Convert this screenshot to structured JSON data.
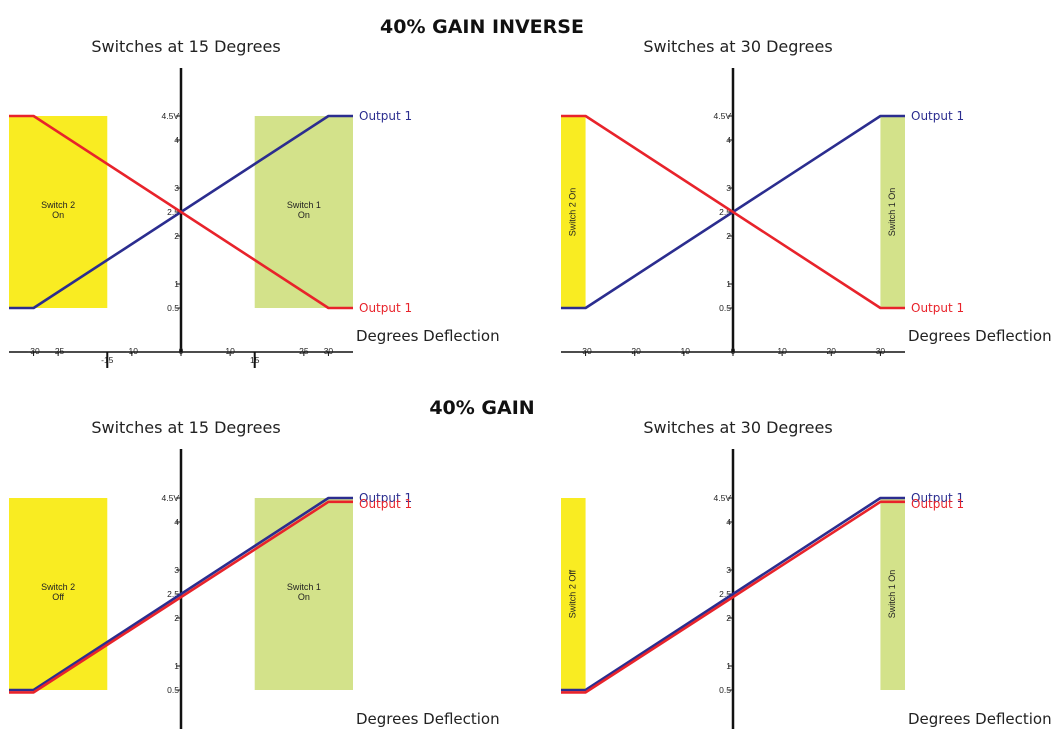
{
  "sections": [
    {
      "title": "40% GAIN INVERSE"
    },
    {
      "title": "40% GAIN"
    }
  ],
  "chart_data": [
    {
      "type": "line",
      "title": "Switches at 15 Degrees",
      "xlabel": "Degrees Deflection",
      "ylabel": "",
      "xlim": [
        -35,
        35
      ],
      "ylim": [
        0,
        5
      ],
      "x_ticks": [
        -30,
        -25,
        -15,
        -10,
        0,
        10,
        15,
        25,
        30
      ],
      "x_tick_labels": [
        "-30",
        "-25",
        "-15",
        "-10",
        "0",
        "10",
        "15",
        "25",
        "30"
      ],
      "y_ticks": [
        0.5,
        1,
        2,
        2.5,
        3,
        4,
        4.5
      ],
      "y_tick_labels": [
        "0.5",
        "1",
        "2",
        "2.5",
        "3",
        "4",
        "4.5V"
      ],
      "switches": [
        {
          "x0": -35,
          "x1": -15,
          "color": "#f9ec22",
          "label_lines": [
            "Switch 2",
            "On"
          ],
          "orientation": "horizontal"
        },
        {
          "x0": 15,
          "x1": 35,
          "color": "#d3e28a",
          "label_lines": [
            "Switch 1",
            "On"
          ],
          "orientation": "horizontal"
        }
      ],
      "series": [
        {
          "name": "Output 1",
          "color": "#2b2d8f",
          "x": [
            -35,
            -30,
            30,
            35
          ],
          "y": [
            0.5,
            0.5,
            4.5,
            4.5
          ]
        },
        {
          "name": "Output 1",
          "color": "#e8232b",
          "x": [
            -35,
            -30,
            30,
            35
          ],
          "y": [
            4.5,
            4.5,
            0.5,
            0.5
          ]
        }
      ]
    },
    {
      "type": "line",
      "title": "Switches at 30 Degrees",
      "xlabel": "Degrees Deflection",
      "ylabel": "",
      "xlim": [
        -35,
        35
      ],
      "ylim": [
        0,
        5
      ],
      "x_ticks": [
        -30,
        -20,
        -10,
        0,
        10,
        20,
        30
      ],
      "x_tick_labels": [
        "-30",
        "-20",
        "-10",
        "0",
        "10",
        "20",
        "30"
      ],
      "y_ticks": [
        0.5,
        1,
        2,
        2.5,
        3,
        4,
        4.5
      ],
      "y_tick_labels": [
        "0.5",
        "1",
        "2",
        "2.5",
        "3",
        "4",
        "4.5V"
      ],
      "switches": [
        {
          "x0": -35,
          "x1": -30,
          "color": "#f9ec22",
          "label_lines": [
            "Switch 2 On"
          ],
          "orientation": "vertical"
        },
        {
          "x0": 30,
          "x1": 35,
          "color": "#d3e28a",
          "label_lines": [
            "Switch 1 On"
          ],
          "orientation": "vertical"
        }
      ],
      "series": [
        {
          "name": "Output 1",
          "color": "#2b2d8f",
          "x": [
            -35,
            -30,
            30,
            35
          ],
          "y": [
            0.5,
            0.5,
            4.5,
            4.5
          ]
        },
        {
          "name": "Output 1",
          "color": "#e8232b",
          "x": [
            -35,
            -30,
            30,
            35
          ],
          "y": [
            4.5,
            4.5,
            0.5,
            0.5
          ]
        }
      ]
    },
    {
      "type": "line",
      "title": "Switches at 15 Degrees",
      "xlabel": "Degrees Deflection",
      "ylabel": "",
      "xlim": [
        -35,
        35
      ],
      "ylim": [
        0,
        5
      ],
      "x_ticks": [],
      "x_tick_labels": [],
      "y_ticks": [
        0.5,
        1,
        2,
        2.5,
        3,
        4,
        4.5
      ],
      "y_tick_labels": [
        "0.5",
        "1",
        "2",
        "2.5",
        "3",
        "4",
        "4.5V"
      ],
      "switches": [
        {
          "x0": -35,
          "x1": -15,
          "color": "#f9ec22",
          "label_lines": [
            "Switch 2",
            "Off"
          ],
          "orientation": "horizontal"
        },
        {
          "x0": 15,
          "x1": 35,
          "color": "#d3e28a",
          "label_lines": [
            "Switch 1",
            "On"
          ],
          "orientation": "horizontal"
        }
      ],
      "series": [
        {
          "name": "Output 1",
          "color": "#2b2d8f",
          "x": [
            -35,
            -30,
            30,
            35
          ],
          "y": [
            0.5,
            0.5,
            4.5,
            4.5
          ]
        },
        {
          "name": "Output 1",
          "color": "#e8232b",
          "x": [
            -35,
            -30,
            30,
            35
          ],
          "y": [
            0.45,
            0.45,
            4.42,
            4.42
          ]
        }
      ]
    },
    {
      "type": "line",
      "title": "Switches at 30 Degrees",
      "xlabel": "Degrees Deflection",
      "ylabel": "",
      "xlim": [
        -35,
        35
      ],
      "ylim": [
        0,
        5
      ],
      "x_ticks": [],
      "x_tick_labels": [],
      "y_ticks": [
        0.5,
        1,
        2,
        2.5,
        3,
        4,
        4.5
      ],
      "y_tick_labels": [
        "0.5",
        "1",
        "2",
        "2.5",
        "3",
        "4",
        "4.5V"
      ],
      "switches": [
        {
          "x0": -35,
          "x1": -30,
          "color": "#f9ec22",
          "label_lines": [
            "Switch 2 Off"
          ],
          "orientation": "vertical"
        },
        {
          "x0": 30,
          "x1": 35,
          "color": "#d3e28a",
          "label_lines": [
            "Switch 1 On"
          ],
          "orientation": "vertical"
        }
      ],
      "series": [
        {
          "name": "Output 1",
          "color": "#2b2d8f",
          "x": [
            -35,
            -30,
            30,
            35
          ],
          "y": [
            0.5,
            0.5,
            4.5,
            4.5
          ]
        },
        {
          "name": "Output 1",
          "color": "#e8232b",
          "x": [
            -35,
            -30,
            30,
            35
          ],
          "y": [
            0.45,
            0.45,
            4.42,
            4.42
          ]
        }
      ]
    }
  ]
}
